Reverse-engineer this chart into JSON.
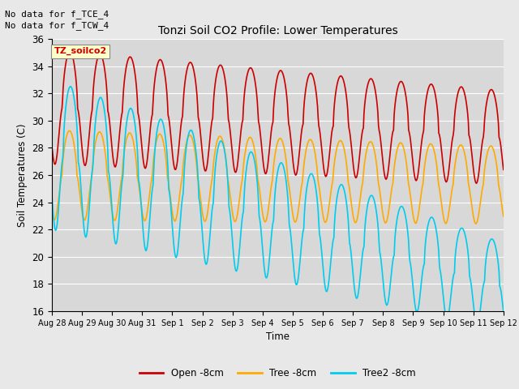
{
  "title": "Tonzi Soil CO2 Profile: Lower Temperatures",
  "ylabel": "Soil Temperatures (C)",
  "xlabel": "Time",
  "ylim": [
    16,
    36
  ],
  "annotation1": "No data for f_TCE_4",
  "annotation2": "No data for f_TCW_4",
  "legend_box_label": "TZ_soilco2",
  "xtick_labels": [
    "Aug 28",
    "Aug 29",
    "Aug 30",
    "Aug 31",
    "Sep 1",
    "Sep 2",
    "Sep 3",
    "Sep 4",
    "Sep 5",
    "Sep 6",
    "Sep 7",
    "Sep 8",
    "Sep 9",
    "Sep 10",
    "Sep 11",
    "Sep 12"
  ],
  "colors": {
    "open": "#cc0000",
    "tree": "#ffaa00",
    "tree2": "#00ccee",
    "bg": "#e8e8e8",
    "plot_bg": "#d8d8d8"
  },
  "legend_labels": [
    "Open -8cm",
    "Tree -8cm",
    "Tree2 -8cm"
  ],
  "line_width": 1.2
}
